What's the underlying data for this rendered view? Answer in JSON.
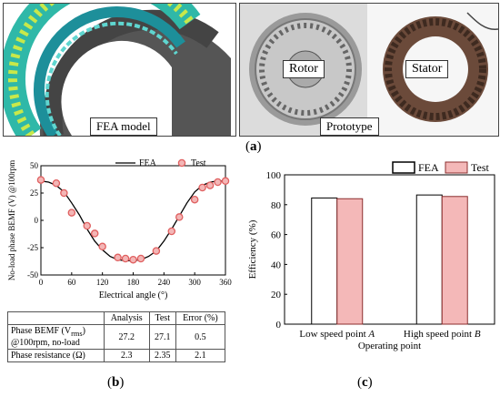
{
  "panel_a": {
    "fea_caption": "FEA model",
    "prototype_caption": "Prototype",
    "rotor_label": "Rotor",
    "stator_label": "Stator",
    "label_open": "(",
    "label_letter": "a",
    "label_close": ")"
  },
  "panel_b": {
    "label_open": "(",
    "label_letter": "b",
    "label_close": ")",
    "table": {
      "headers": [
        "",
        "Analysis",
        "Test",
        "Error (%)"
      ],
      "rows": [
        {
          "name_line1": "Phase BEMF (V",
          "name_sub": "rms",
          "name_line1_end": ")",
          "name_line2": "@100rpm, no-load",
          "analysis": "27.2",
          "test": "27.1",
          "error": "0.5"
        },
        {
          "name_line1": "Phase resistance (Ω)",
          "name_sub": "",
          "name_line1_end": "",
          "name_line2": "",
          "analysis": "2.3",
          "test": "2.35",
          "error": "2.1"
        }
      ]
    }
  },
  "panel_c": {
    "label_open": "(",
    "label_letter": "c",
    "label_close": ")"
  },
  "chart_data": [
    {
      "type": "line",
      "title": "",
      "xlabel": "Electrical angle (°)",
      "ylabel": "No-load phase BEMF (V) @100rpm",
      "xlim": [
        0,
        360
      ],
      "ylim": [
        -50,
        50
      ],
      "xticks": [
        0,
        60,
        120,
        180,
        240,
        300,
        360
      ],
      "yticks": [
        -50,
        -25,
        0,
        25,
        50
      ],
      "legend_position": "top-right",
      "series": [
        {
          "name": "FEA",
          "style": "line",
          "color": "#000000",
          "x": [
            0,
            15,
            30,
            45,
            60,
            75,
            90,
            105,
            120,
            135,
            150,
            165,
            180,
            195,
            210,
            225,
            240,
            255,
            270,
            285,
            300,
            315,
            330,
            345,
            360
          ],
          "y": [
            36,
            35,
            32,
            26,
            16,
            5,
            -8,
            -19,
            -27,
            -33,
            -36,
            -37,
            -37,
            -36,
            -33,
            -28,
            -19,
            -8,
            4,
            16,
            26,
            32,
            35,
            36,
            36
          ]
        },
        {
          "name": "Test",
          "style": "marker",
          "color": "#e06060",
          "x": [
            0,
            30,
            45,
            60,
            90,
            105,
            120,
            150,
            165,
            180,
            195,
            225,
            255,
            270,
            300,
            315,
            330,
            345,
            360
          ],
          "y": [
            37,
            34,
            25,
            7,
            -5,
            -12,
            -24,
            -34,
            -35,
            -36,
            -35,
            -28,
            -10,
            3,
            19,
            30,
            32,
            35,
            36
          ]
        }
      ]
    },
    {
      "type": "bar",
      "title": "",
      "xlabel": "Operating point",
      "ylabel": "Efficiency (%)",
      "ylim": [
        0,
        100
      ],
      "yticks": [
        0,
        20,
        40,
        60,
        80,
        100
      ],
      "legend_position": "top",
      "categories": [
        {
          "text": "Low speed point ",
          "italic": "A"
        },
        {
          "text": "High speed point ",
          "italic": "B"
        }
      ],
      "series": [
        {
          "name": "FEA",
          "color": "#ffffff",
          "values": [
            84.5,
            86.5
          ]
        },
        {
          "name": "Test",
          "color": "#f4b8b8",
          "values": [
            84,
            85.5
          ]
        }
      ]
    }
  ]
}
